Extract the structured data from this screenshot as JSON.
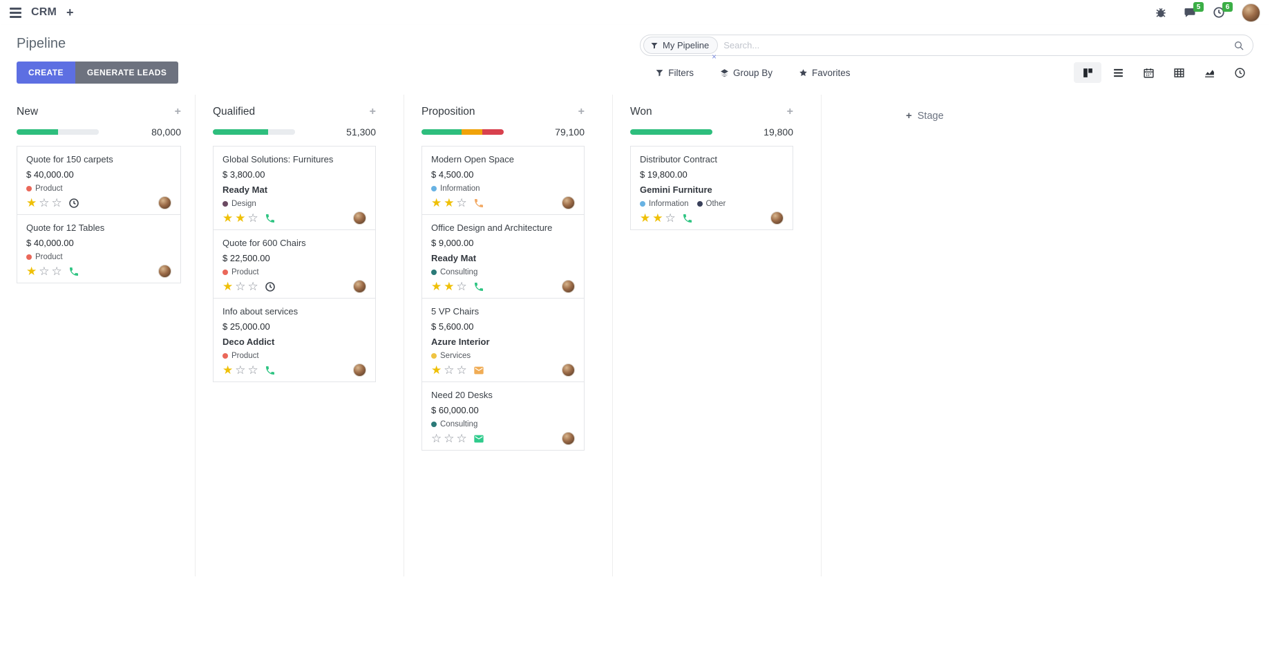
{
  "navbar": {
    "app_name": "CRM",
    "messages_badge": "5",
    "activities_badge": "6",
    "icons": [
      "menu-icon",
      "plus-icon",
      "bug-icon",
      "chat-icon",
      "clock-icon",
      "avatar"
    ]
  },
  "control_panel": {
    "breadcrumb": "Pipeline",
    "create_label": "CREATE",
    "generate_leads_label": "GENERATE LEADS",
    "filters_label": "Filters",
    "group_by_label": "Group By",
    "favorites_label": "Favorites",
    "search": {
      "facet": "My Pipeline",
      "placeholder": "Search...",
      "facet_remove": "×"
    },
    "view_switcher": [
      "kanban-view",
      "list-view",
      "calendar-view",
      "pivot-view",
      "graph-view",
      "activity-view"
    ],
    "active_view": "kanban-view"
  },
  "colors": {
    "accent_primary": "#5d6fe2",
    "accent_secondary": "#6d727f",
    "badge_green": "#3bae46",
    "progress": {
      "green": "#2ebe7d",
      "yellow": "#f0a30a",
      "red": "#d8414e",
      "empty": "#e9ecef"
    },
    "star_filled": "#efc007",
    "phone_green": "#2ec482",
    "phone_orange": "#f2a964",
    "envelope_orange": "#f0ac55",
    "envelope_green": "#2fcb8c",
    "clock_dark": "#40464f"
  },
  "kanban": {
    "add_stage_label": "Stage",
    "stars_total": 3,
    "columns": [
      {
        "name": "New",
        "value": "80,000",
        "progress": [
          {
            "color": "green",
            "pct": 50
          },
          {
            "color": "empty",
            "pct": 50
          }
        ],
        "cards": [
          {
            "title": "Quote for 150 carpets",
            "amount": "$ 40,000.00",
            "partner": "",
            "tags": [
              {
                "label": "Product",
                "color": "#ea6759"
              }
            ],
            "stars": 1,
            "activity": {
              "icon": "clock-icon",
              "color": "#40464f"
            }
          },
          {
            "title": "Quote for 12 Tables",
            "amount": "$ 40,000.00",
            "partner": "",
            "tags": [
              {
                "label": "Product",
                "color": "#ea6759"
              }
            ],
            "stars": 1,
            "activity": {
              "icon": "phone-icon",
              "color": "#2ec482"
            }
          }
        ]
      },
      {
        "name": "Qualified",
        "value": "51,300",
        "progress": [
          {
            "color": "green",
            "pct": 67
          },
          {
            "color": "empty",
            "pct": 33
          }
        ],
        "cards": [
          {
            "title": "Global Solutions: Furnitures",
            "amount": "$ 3,800.00",
            "partner": "Ready Mat",
            "tags": [
              {
                "label": "Design",
                "color": "#6b4a62"
              }
            ],
            "stars": 2,
            "activity": {
              "icon": "phone-icon",
              "color": "#2ec482"
            }
          },
          {
            "title": "Quote for 600 Chairs",
            "amount": "$ 22,500.00",
            "partner": "",
            "tags": [
              {
                "label": "Product",
                "color": "#ea6759"
              }
            ],
            "stars": 1,
            "activity": {
              "icon": "clock-icon",
              "color": "#40464f"
            }
          },
          {
            "title": "Info about services",
            "amount": "$ 25,000.00",
            "partner": "Deco Addict",
            "tags": [
              {
                "label": "Product",
                "color": "#ea6759"
              }
            ],
            "stars": 1,
            "activity": {
              "icon": "phone-icon",
              "color": "#2ec482"
            }
          }
        ]
      },
      {
        "name": "Proposition",
        "value": "79,100",
        "progress": [
          {
            "color": "green",
            "pct": 49
          },
          {
            "color": "yellow",
            "pct": 25
          },
          {
            "color": "red",
            "pct": 26
          }
        ],
        "cards": [
          {
            "title": "Modern Open Space",
            "amount": "$ 4,500.00",
            "partner": "",
            "tags": [
              {
                "label": "Information",
                "color": "#68b2e3"
              }
            ],
            "stars": 2,
            "activity": {
              "icon": "phone-icon",
              "color": "#f2a964"
            }
          },
          {
            "title": "Office Design and Architecture",
            "amount": "$ 9,000.00",
            "partner": "Ready Mat",
            "tags": [
              {
                "label": "Consulting",
                "color": "#2b7a78"
              }
            ],
            "stars": 2,
            "activity": {
              "icon": "phone-icon",
              "color": "#2ec482"
            }
          },
          {
            "title": "5 VP Chairs",
            "amount": "$ 5,600.00",
            "partner": "Azure Interior",
            "tags": [
              {
                "label": "Services",
                "color": "#efc342"
              }
            ],
            "stars": 1,
            "activity": {
              "icon": "envelope-icon",
              "color": "#f0ac55"
            }
          },
          {
            "title": "Need 20 Desks",
            "amount": "$ 60,000.00",
            "partner": "",
            "tags": [
              {
                "label": "Consulting",
                "color": "#2b7a78"
              }
            ],
            "stars": 0,
            "activity": {
              "icon": "envelope-icon",
              "color": "#2fcb8c"
            }
          }
        ]
      },
      {
        "name": "Won",
        "value": "19,800",
        "progress": [
          {
            "color": "green",
            "pct": 100
          }
        ],
        "cards": [
          {
            "title": "Distributor Contract",
            "amount": "$ 19,800.00",
            "partner": "Gemini Furniture",
            "tags": [
              {
                "label": "Information",
                "color": "#68b2e3"
              },
              {
                "label": "Other",
                "color": "#39405a"
              }
            ],
            "stars": 2,
            "activity": {
              "icon": "phone-icon",
              "color": "#2ec482"
            }
          }
        ]
      }
    ]
  }
}
